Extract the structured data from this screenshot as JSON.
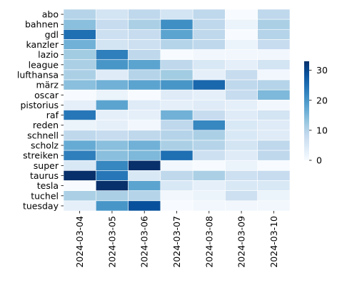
{
  "chart_data": {
    "type": "heatmap",
    "title": "",
    "xlabel": "",
    "ylabel": "",
    "x_categories": [
      "2024-03-04",
      "2024-03-05",
      "2024-03-06",
      "2024-03-07",
      "2024-03-08",
      "2024-03-09",
      "2024-03-10"
    ],
    "y_categories": [
      "abo",
      "bahnen",
      "gdl",
      "kanzler",
      "lazio",
      "league",
      "lufthansa",
      "märz",
      "oscar",
      "pistorius",
      "raf",
      "reden",
      "schnell",
      "scholz",
      "streiken",
      "super",
      "taurus",
      "tesla",
      "tuchel",
      "tuesday"
    ],
    "values": [
      [
        10,
        6,
        9,
        6,
        9,
        0,
        9
      ],
      [
        14,
        8,
        11,
        21,
        9,
        2,
        11
      ],
      [
        25,
        7,
        8,
        18,
        9,
        0,
        10
      ],
      [
        16,
        6,
        7,
        10,
        9,
        2,
        8
      ],
      [
        12,
        23,
        9,
        0,
        1,
        1,
        1
      ],
      [
        11,
        20,
        18,
        9,
        5,
        3,
        6
      ],
      [
        11,
        4,
        10,
        12,
        3,
        8,
        1
      ],
      [
        14,
        16,
        18,
        20,
        26,
        9,
        10
      ],
      [
        0,
        2,
        0,
        4,
        3,
        8,
        15
      ],
      [
        3,
        18,
        4,
        3,
        4,
        3,
        1
      ],
      [
        24,
        3,
        3,
        16,
        8,
        4,
        6
      ],
      [
        2,
        3,
        1,
        9,
        22,
        5,
        4
      ],
      [
        9,
        8,
        9,
        10,
        11,
        5,
        4
      ],
      [
        17,
        14,
        16,
        11,
        10,
        6,
        9
      ],
      [
        23,
        14,
        15,
        25,
        7,
        4,
        9
      ],
      [
        5,
        22,
        33,
        1,
        0,
        2,
        0
      ],
      [
        33,
        24,
        5,
        9,
        11,
        7,
        8
      ],
      [
        0,
        33,
        18,
        5,
        3,
        5,
        5
      ],
      [
        11,
        11,
        10,
        1,
        2,
        7,
        2
      ],
      [
        3,
        20,
        29,
        0,
        1,
        1,
        1
      ]
    ],
    "colorscale": "Blues",
    "vmin": 0,
    "vmax": 33,
    "colorbar_ticks": [
      0,
      10,
      20,
      30
    ],
    "grid_lines": true,
    "grid_color": "#ffffff"
  }
}
